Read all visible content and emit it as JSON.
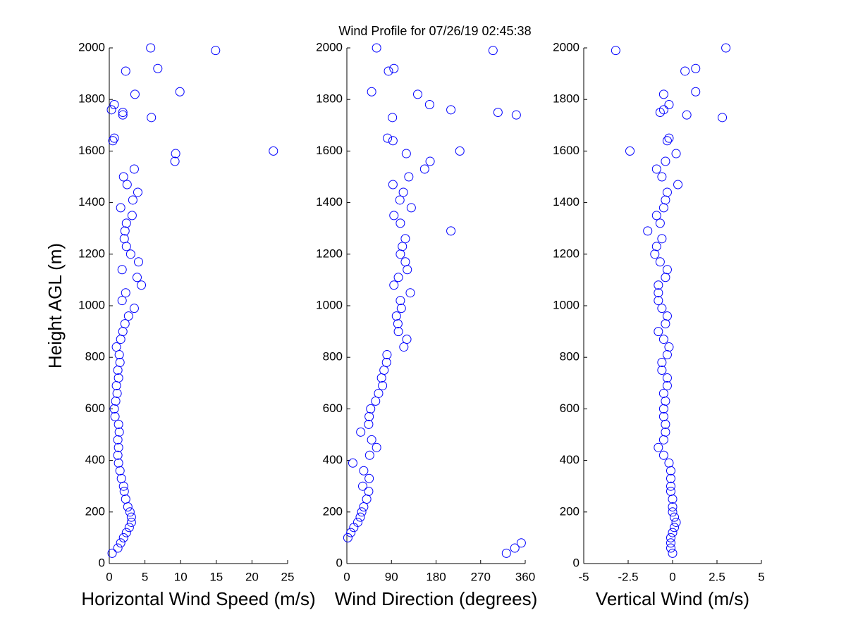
{
  "title": "Wind Profile for  07/26/19 02:45:38",
  "chart_data": [
    {
      "type": "scatter",
      "color": "#0000ff",
      "xlabel": "Horizontal Wind Speed (m/s)",
      "ylabel": "Height AGL (m)",
      "xlim": [
        0,
        25
      ],
      "xticks": [
        0,
        5,
        10,
        15,
        20,
        25
      ],
      "ylim": [
        0,
        2000
      ],
      "yticks": [
        0,
        200,
        400,
        600,
        800,
        1000,
        1200,
        1400,
        1600,
        1800,
        2000
      ],
      "x": [
        0.4,
        1.2,
        1.6,
        2.0,
        2.4,
        2.8,
        3.1,
        3.1,
        2.9,
        2.6,
        2.3,
        2.1,
        2.0,
        1.7,
        1.5,
        1.3,
        1.2,
        1.3,
        1.2,
        1.4,
        1.3,
        0.8,
        0.7,
        0.9,
        1.1,
        1.0,
        1.3,
        1.2,
        1.5,
        1.4,
        1.0,
        1.6,
        1.9,
        2.2,
        2.7,
        3.5,
        1.8,
        2.3,
        4.5,
        3.9,
        1.8,
        4.1,
        3.0,
        2.4,
        2.1,
        2.2,
        2.4,
        3.2,
        1.6,
        3.3,
        4.0,
        2.5,
        2.0,
        3.5,
        9.2,
        9.3,
        23.0,
        0.5,
        0.7,
        5.9,
        1.9,
        1.9,
        0.3,
        0.7,
        3.6,
        9.9,
        2.3,
        6.8,
        14.9,
        5.8
      ],
      "y": [
        40,
        60,
        80,
        100,
        120,
        140,
        160,
        180,
        200,
        220,
        250,
        280,
        300,
        330,
        360,
        390,
        420,
        450,
        480,
        510,
        540,
        570,
        600,
        630,
        660,
        690,
        720,
        750,
        780,
        810,
        840,
        870,
        900,
        930,
        960,
        990,
        1020,
        1050,
        1080,
        1110,
        1140,
        1170,
        1200,
        1230,
        1260,
        1290,
        1320,
        1350,
        1380,
        1410,
        1440,
        1470,
        1500,
        1530,
        1560,
        1590,
        1600,
        1640,
        1650,
        1730,
        1740,
        1750,
        1760,
        1780,
        1820,
        1830,
        1910,
        1920,
        1990,
        2000
      ]
    },
    {
      "type": "scatter",
      "color": "#0000ff",
      "xlabel": "Wind Direction (degrees)",
      "xlim": [
        0,
        360
      ],
      "xticks": [
        0,
        90,
        180,
        270,
        360
      ],
      "ylim": [
        0,
        2000
      ],
      "yticks": [
        0,
        200,
        400,
        600,
        800,
        1000,
        1200,
        1400,
        1600,
        1800,
        2000
      ],
      "x": [
        322,
        339,
        352,
        2,
        8,
        14,
        22,
        27,
        30,
        34,
        40,
        44,
        32,
        45,
        34,
        12,
        46,
        60,
        50,
        28,
        44,
        45,
        48,
        58,
        64,
        72,
        70,
        75,
        80,
        81,
        115,
        121,
        104,
        103,
        100,
        110,
        108,
        128,
        95,
        104,
        122,
        118,
        108,
        112,
        118,
        210,
        108,
        95,
        130,
        107,
        114,
        93,
        125,
        157,
        168,
        120,
        228,
        93,
        82,
        92,
        342,
        305,
        210,
        167,
        143,
        50,
        84,
        95,
        295,
        60
      ],
      "y": [
        40,
        60,
        80,
        100,
        120,
        140,
        160,
        180,
        200,
        220,
        250,
        280,
        300,
        330,
        360,
        390,
        420,
        450,
        480,
        510,
        540,
        570,
        600,
        630,
        660,
        690,
        720,
        750,
        780,
        810,
        840,
        870,
        900,
        930,
        960,
        990,
        1020,
        1050,
        1080,
        1110,
        1140,
        1170,
        1200,
        1230,
        1260,
        1290,
        1320,
        1350,
        1380,
        1410,
        1440,
        1470,
        1500,
        1530,
        1560,
        1590,
        1600,
        1640,
        1650,
        1730,
        1740,
        1750,
        1760,
        1780,
        1820,
        1830,
        1910,
        1920,
        1990,
        2000
      ]
    },
    {
      "type": "scatter",
      "color": "#0000ff",
      "xlabel": "Vertical Wind (m/s)",
      "xlim": [
        -5,
        5
      ],
      "xticks": [
        -5,
        -2.5,
        0,
        2.5,
        5
      ],
      "ylim": [
        0,
        2000
      ],
      "yticks": [
        0,
        200,
        400,
        600,
        800,
        1000,
        1200,
        1400,
        1600,
        1800,
        2000
      ],
      "x": [
        0,
        -0.1,
        -0.1,
        -0.1,
        0,
        0.1,
        0.2,
        0.1,
        0,
        0,
        0,
        -0.1,
        -0.1,
        -0.1,
        -0.1,
        -0.2,
        -0.5,
        -0.8,
        -0.5,
        -0.4,
        -0.4,
        -0.5,
        -0.5,
        -0.4,
        -0.5,
        -0.3,
        -0.3,
        -0.6,
        -0.6,
        -0.3,
        -0.2,
        -0.5,
        -0.8,
        -0.4,
        -0.3,
        -0.6,
        -0.8,
        -0.8,
        -0.8,
        -0.4,
        -0.3,
        -0.7,
        -1.0,
        -0.9,
        -0.6,
        -1.4,
        -0.7,
        -0.9,
        -0.5,
        -0.4,
        -0.3,
        0.3,
        -0.6,
        -0.9,
        -0.4,
        0.2,
        -2.4,
        -0.3,
        -0.2,
        2.8,
        0.8,
        -0.7,
        -0.5,
        -0.2,
        -0.5,
        1.3,
        0.7,
        1.3,
        -3.2,
        3.0
      ],
      "y": [
        40,
        60,
        80,
        100,
        120,
        140,
        160,
        180,
        200,
        220,
        250,
        280,
        300,
        330,
        360,
        390,
        420,
        450,
        480,
        510,
        540,
        570,
        600,
        630,
        660,
        690,
        720,
        750,
        780,
        810,
        840,
        870,
        900,
        930,
        960,
        990,
        1020,
        1050,
        1080,
        1110,
        1140,
        1170,
        1200,
        1230,
        1260,
        1290,
        1320,
        1350,
        1380,
        1410,
        1440,
        1470,
        1500,
        1530,
        1560,
        1590,
        1600,
        1640,
        1650,
        1730,
        1740,
        1750,
        1760,
        1780,
        1820,
        1830,
        1910,
        1920,
        1990,
        2000
      ]
    }
  ]
}
